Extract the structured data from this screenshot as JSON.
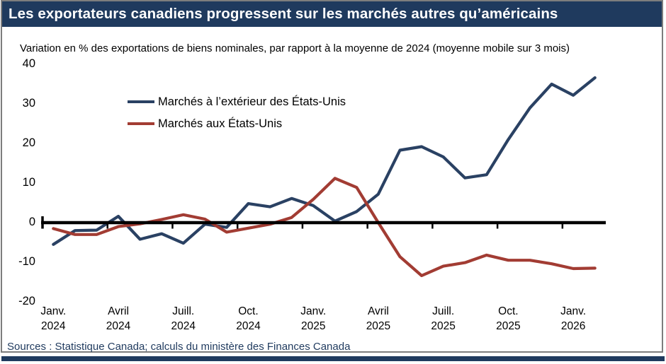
{
  "title": "Les exportateurs canadiens progressent sur les marchés autres qu’américains",
  "subtitle": "Variation en % des exportations de biens nominales, par rapport à la moyenne de 2024 (moyenne mobile sur 3 mois)",
  "source": "Sources : Statistique Canada; calculs du ministère des Finances Canada",
  "colors": {
    "accent_navy": "#1f3a5e",
    "line_non_us": "#2a4163",
    "line_us": "#a23c33",
    "axis": "#000000",
    "frame_border": "#7d7d7d"
  },
  "legend": [
    {
      "label": "Marchés à l’extérieur des États-Unis",
      "color": "#2a4163"
    },
    {
      "label": "Marchés aux États-Unis",
      "color": "#a23c33"
    }
  ],
  "chart_data": {
    "type": "line",
    "x": [
      "Janv. 2024",
      "Févr. 2024",
      "Mars 2024",
      "Avr. 2024",
      "Mai 2024",
      "Juin 2024",
      "Juil. 2024",
      "Août 2024",
      "Sept. 2024",
      "Oct. 2024",
      "Nov. 2024",
      "Déc. 2024",
      "Janv. 2025",
      "Févr. 2025",
      "Mars 2025",
      "Avr. 2025",
      "Mai 2025",
      "Juin 2025",
      "Juil. 2025",
      "Août 2025",
      "Sept. 2025",
      "Oct. 2025",
      "Nov. 2025",
      "Déc. 2025",
      "Janv. 2026",
      "Févr. 2026"
    ],
    "series": [
      {
        "name": "Marchés à l’extérieur des États-Unis",
        "color": "#2a4163",
        "values": [
          -5.5,
          -2.0,
          -1.9,
          1.6,
          -4.2,
          -2.8,
          -5.2,
          -0.4,
          -1.2,
          4.8,
          4.0,
          6.1,
          4.3,
          0.4,
          2.8,
          7.2,
          18.3,
          19.2,
          16.6,
          11.3,
          12.1,
          21.0,
          29.0,
          35.0,
          32.2,
          36.6
        ]
      },
      {
        "name": "Marchés aux États-Unis",
        "color": "#a23c33",
        "values": [
          -1.5,
          -3.0,
          -3.0,
          -1.0,
          -0.3,
          0.8,
          2.0,
          0.9,
          -2.4,
          -1.4,
          -0.4,
          1.3,
          5.9,
          11.2,
          8.9,
          0.0,
          -8.6,
          -13.4,
          -11.0,
          -10.1,
          -8.2,
          -9.5,
          -9.5,
          -10.4,
          -11.6,
          -11.5
        ]
      }
    ],
    "ylim": [
      -20,
      40
    ],
    "yticks": [
      40,
      30,
      20,
      10,
      0,
      -10,
      -20
    ],
    "xticks": [
      [
        "Janv.",
        "2024"
      ],
      [
        "Avril",
        "2024"
      ],
      [
        "Juill.",
        "2024"
      ],
      [
        "Oct.",
        "2024"
      ],
      [
        "Janv.",
        "2025"
      ],
      [
        "Avril",
        "2025"
      ],
      [
        "Juill.",
        "2025"
      ],
      [
        "Oct.",
        "2025"
      ],
      [
        "Janv.",
        "2026"
      ]
    ],
    "grid": false,
    "legend_position": "top-left-inside",
    "title": "Les exportateurs canadiens progressent sur les marchés autres qu’américains",
    "ylabel": "",
    "xlabel": ""
  }
}
